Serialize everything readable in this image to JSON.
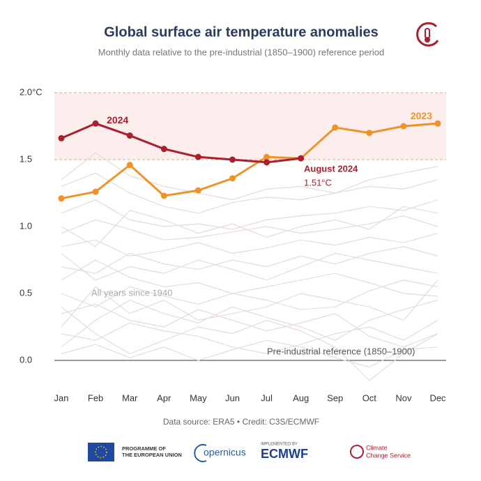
{
  "chart_data": {
    "type": "line",
    "title": "Global surface air temperature anomalies",
    "subtitle": "Monthly data relative to the pre-industrial (1850–1900) reference period",
    "categories": [
      "Jan",
      "Feb",
      "Mar",
      "Apr",
      "May",
      "Jun",
      "Jul",
      "Aug",
      "Sep",
      "Oct",
      "Nov",
      "Dec"
    ],
    "ylim": [
      -0.2,
      2.0
    ],
    "yticks": [
      {
        "value": 0,
        "label": "0.0"
      },
      {
        "value": 0.5,
        "label": "0.5"
      },
      {
        "value": 1,
        "label": "1.0"
      },
      {
        "value": 1.5,
        "label": "1.5"
      },
      {
        "value": 2,
        "label": "2.0°C"
      }
    ],
    "band": [
      1.5,
      2.0
    ],
    "series": [
      {
        "color": "#e6dbd7",
        "values": [
          0.05,
          0.12,
          0.02,
          0.1,
          0.0,
          0.08,
          0.15,
          0.1,
          0.02,
          -0.05,
          0.08,
          0.1
        ]
      },
      {
        "color": "#e6dbd7",
        "values": [
          0.2,
          0.15,
          0.28,
          0.22,
          0.18,
          0.1,
          0.05,
          0.12,
          0.2,
          0.25,
          0.15,
          0.3
        ]
      },
      {
        "color": "#e6dbd7",
        "values": [
          0.35,
          0.42,
          0.3,
          0.25,
          0.38,
          0.3,
          0.22,
          0.28,
          0.35,
          0.18,
          0.1,
          0.2
        ]
      },
      {
        "color": "#e6dbd7",
        "values": [
          0.1,
          0.3,
          0.45,
          0.35,
          0.28,
          0.4,
          0.32,
          0.25,
          0.15,
          0.3,
          0.38,
          0.45
        ]
      },
      {
        "color": "#e6dbd7",
        "values": [
          0.5,
          0.4,
          0.55,
          0.48,
          0.42,
          0.5,
          0.45,
          0.38,
          0.4,
          0.52,
          0.6,
          0.55
        ]
      },
      {
        "color": "#e6dbd7",
        "values": [
          0.6,
          0.75,
          0.62,
          0.55,
          0.58,
          0.5,
          0.55,
          0.6,
          0.65,
          0.58,
          0.5,
          0.48
        ]
      },
      {
        "color": "#e6dbd7",
        "values": [
          0.7,
          0.65,
          0.8,
          0.72,
          0.68,
          0.75,
          0.7,
          0.78,
          0.72,
          0.8,
          0.85,
          0.78
        ]
      },
      {
        "color": "#e6dbd7",
        "values": [
          0.85,
          0.9,
          0.78,
          0.82,
          0.88,
          0.8,
          0.84,
          0.9,
          0.86,
          0.92,
          0.88,
          0.95
        ]
      },
      {
        "color": "#e6dbd7",
        "values": [
          0.95,
          1.05,
          0.98,
          0.9,
          0.92,
          0.96,
          1.0,
          0.95,
          0.98,
          1.02,
          1.08,
          1.0
        ]
      },
      {
        "color": "#e6dbd7",
        "values": [
          1.1,
          1.2,
          1.05,
          1.0,
          1.02,
          0.98,
          1.05,
          1.08,
          1.1,
          1.15,
          1.12,
          1.2
        ]
      },
      {
        "color": "#e6dbd7",
        "values": [
          1.3,
          1.4,
          1.25,
          1.15,
          1.1,
          1.18,
          1.22,
          1.2,
          1.25,
          1.3,
          1.28,
          1.35
        ]
      },
      {
        "color": "#e6dbd7",
        "values": [
          1.35,
          1.55,
          1.38,
          1.3,
          1.25,
          1.2,
          1.28,
          1.3,
          1.25,
          1.35,
          1.4,
          1.45
        ]
      },
      {
        "color": "#e6dbd7",
        "values": [
          0.4,
          0.2,
          0.05,
          0.15,
          0.25,
          0.2,
          0.3,
          0.22,
          0.1,
          -0.15,
          0.05,
          0.2
        ]
      },
      {
        "color": "#e6dbd7",
        "values": [
          0.25,
          0.55,
          0.35,
          0.45,
          0.3,
          0.35,
          0.4,
          0.5,
          0.45,
          0.4,
          0.3,
          0.6
        ]
      },
      {
        "color": "#e6dbd7",
        "values": [
          0.8,
          0.6,
          0.7,
          0.65,
          0.75,
          0.68,
          0.6,
          0.7,
          0.8,
          0.75,
          0.7,
          0.65
        ]
      },
      {
        "color": "#e6dbd7",
        "values": [
          1.0,
          0.85,
          1.12,
          1.05,
          0.95,
          1.02,
          0.92,
          1.0,
          1.05,
          0.98,
          1.15,
          1.1
        ]
      },
      {
        "name": "2023",
        "color": "#f0922a",
        "values": [
          1.21,
          1.26,
          1.46,
          1.23,
          1.27,
          1.36,
          1.52,
          1.51,
          1.74,
          1.7,
          1.75,
          1.77
        ]
      },
      {
        "name": "2024",
        "color": "#a81f2d",
        "values": [
          1.66,
          1.77,
          1.68,
          1.58,
          1.52,
          1.5,
          1.48,
          1.51,
          null,
          null,
          null,
          null
        ]
      }
    ],
    "annotations": [
      "August 2024",
      "1.51°C",
      "All years since 1940",
      "Pre-industrial reference (1850–1900)"
    ],
    "source": "Data source: ERA5 • Credit: C3S/ECMWF"
  },
  "footer": {
    "eu": [
      "PROGRAMME OF",
      "THE EUROPEAN UNION"
    ],
    "copernicus": "opernicus",
    "implemented": "IMPLEMENTED BY",
    "ecmwf": "ECMWF",
    "c3s": [
      "Climate",
      "Change Service"
    ]
  }
}
